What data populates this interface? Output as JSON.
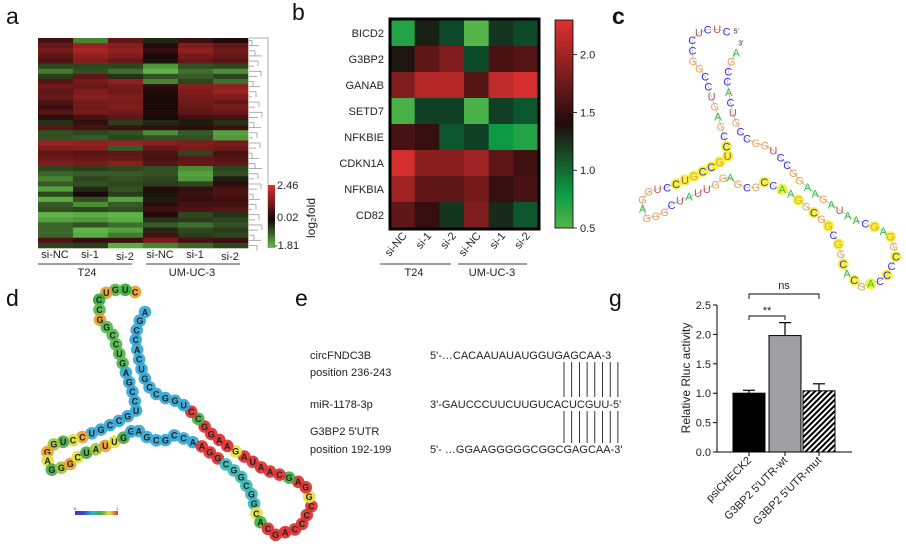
{
  "panel_labels": {
    "a": "a",
    "b": "b",
    "c": "c",
    "d": "d",
    "e": "e",
    "g": "g"
  },
  "chart_data": [
    {
      "id": "a",
      "type": "heatmap",
      "title": "",
      "columns": [
        "si-NC",
        "si-1",
        "si-2",
        "si-NC",
        "si-1",
        "si-2"
      ],
      "groups": [
        {
          "label": "T24",
          "span": 3
        },
        {
          "label": "UM-UC-3",
          "span": 3
        }
      ],
      "colorbar": {
        "label": "log₂fold",
        "max_label": "2.46",
        "mid_label": "0.02",
        "min_label": "-1.81",
        "max": 2.46,
        "mid": 0.02,
        "min": -1.81
      },
      "colors": {
        "high": "#e0302e",
        "mid": "#140808",
        "low": "#62c04a"
      },
      "rows": [
        [
          0.6,
          -1.2,
          0.9,
          -0.3,
          0.5,
          0.2
        ],
        [
          1.0,
          1.6,
          1.4,
          0.2,
          1.3,
          0.9
        ],
        [
          1.2,
          1.8,
          1.5,
          0.4,
          1.5,
          1.1
        ],
        [
          0.9,
          1.5,
          1.3,
          0.1,
          1.2,
          1.0
        ],
        [
          0.7,
          1.3,
          1.0,
          -0.1,
          1.0,
          0.8
        ],
        [
          -0.6,
          -0.6,
          -0.6,
          -1.4,
          -0.7,
          -0.6
        ],
        [
          -1.1,
          -0.7,
          -1.0,
          -1.7,
          -1.0,
          -1.3
        ],
        [
          -0.5,
          0.9,
          -0.4,
          -0.7,
          -0.8,
          -0.6
        ],
        [
          0.8,
          1.2,
          1.5,
          -1.2,
          -0.6,
          -1.0
        ],
        [
          1.1,
          1.0,
          1.2,
          0.3,
          1.4,
          1.5
        ],
        [
          0.9,
          1.3,
          1.1,
          0.2,
          1.3,
          1.6
        ],
        [
          1.0,
          1.4,
          1.3,
          0.1,
          1.2,
          1.3
        ],
        [
          0.7,
          1.2,
          1.2,
          0.0,
          1.1,
          1.0
        ],
        [
          0.5,
          1.1,
          1.3,
          0.1,
          1.0,
          1.2
        ],
        [
          0.8,
          1.2,
          1.1,
          0.2,
          0.9,
          1.0
        ],
        [
          0.3,
          0.6,
          0.9,
          0.0,
          0.5,
          0.6
        ],
        [
          -0.4,
          0.4,
          -0.5,
          -0.3,
          -0.2,
          -0.4
        ],
        [
          0.8,
          0.6,
          0.5,
          0.4,
          0.3,
          0.5
        ],
        [
          -0.7,
          -0.6,
          -0.7,
          -1.3,
          -0.8,
          -1.5
        ],
        [
          -0.7,
          -0.8,
          -0.6,
          -0.7,
          -0.7,
          -1.4
        ],
        [
          1.6,
          1.5,
          1.6,
          1.4,
          1.3,
          1.2
        ],
        [
          1.3,
          1.4,
          -0.8,
          1.0,
          1.2,
          1.1
        ],
        [
          0.9,
          0.8,
          0.9,
          0.7,
          -0.6,
          0.6
        ],
        [
          1.1,
          1.0,
          1.0,
          0.6,
          0.9,
          0.8
        ],
        [
          1.3,
          1.2,
          1.4,
          0.8,
          1.0,
          0.9
        ],
        [
          -0.6,
          -0.5,
          -0.6,
          -0.7,
          -1.3,
          -0.6
        ],
        [
          -0.9,
          -0.8,
          -0.8,
          -0.7,
          -1.5,
          -0.7
        ],
        [
          -1.2,
          -0.6,
          -0.7,
          -0.6,
          -1.4,
          -0.2
        ],
        [
          -0.8,
          -0.7,
          -0.6,
          -0.5,
          -0.6,
          0.3
        ],
        [
          -1.5,
          -0.3,
          -0.7,
          0.2,
          0.4,
          0.6
        ],
        [
          -0.6,
          0.1,
          -0.5,
          -0.1,
          0.5,
          0.7
        ],
        [
          -1.6,
          -0.7,
          -1.5,
          -0.2,
          0.4,
          0.5
        ],
        [
          -0.8,
          -1.3,
          -0.8,
          0.3,
          0.6,
          0.6
        ],
        [
          -0.7,
          -0.6,
          -0.7,
          0.5,
          0.7,
          0.8
        ],
        [
          -1.7,
          -1.6,
          -1.7,
          0.2,
          -0.6,
          -0.4
        ],
        [
          -1.5,
          -1.4,
          -1.6,
          -0.4,
          -0.5,
          -0.6
        ],
        [
          -0.9,
          -0.7,
          -1.0,
          -0.8,
          -1.0,
          -0.7
        ],
        [
          -0.9,
          -1.7,
          -1.5,
          -0.3,
          -0.6,
          -0.5
        ],
        [
          -0.9,
          -1.6,
          -1.1,
          0.6,
          -0.5,
          -0.6
        ],
        [
          0.7,
          0.4,
          0.5,
          1.2,
          0.6,
          0.5
        ],
        [
          -0.6,
          -0.5,
          -1.6,
          -1.2,
          -0.9,
          -0.6
        ]
      ]
    },
    {
      "id": "b",
      "type": "heatmap",
      "columns": [
        "si-NC",
        "si-1",
        "si-2",
        "si-NC",
        "si-1",
        "si-2"
      ],
      "groups": [
        {
          "label": "T24",
          "span": 3
        },
        {
          "label": "UM-UC-3",
          "span": 3
        }
      ],
      "row_labels": [
        "BICD2",
        "G3BP2",
        "GANAB",
        "SETD7",
        "NFKBIE",
        "CDKN1A",
        "NFKBIA",
        "CD82"
      ],
      "values": [
        [
          0.7,
          1.3,
          1.1,
          0.5,
          1.2,
          1.1
        ],
        [
          1.35,
          1.7,
          1.85,
          1.1,
          1.6,
          1.65
        ],
        [
          1.85,
          2.1,
          2.1,
          1.65,
          2.15,
          2.25
        ],
        [
          0.55,
          1.15,
          1.15,
          0.55,
          1.15,
          1.05
        ],
        [
          1.6,
          1.5,
          1.05,
          1.15,
          0.8,
          0.7
        ],
        [
          2.25,
          1.9,
          1.9,
          2.0,
          1.7,
          1.55
        ],
        [
          2.0,
          1.7,
          1.7,
          1.8,
          1.5,
          1.6
        ],
        [
          1.7,
          1.5,
          1.2,
          1.85,
          1.25,
          1.05
        ]
      ],
      "colorbar": {
        "min": 0.5,
        "max": 2.3,
        "ticks": [
          "2.0",
          "1.5",
          "1.0",
          "0.5"
        ],
        "tick_values": [
          2.0,
          1.5,
          1.0,
          0.5
        ]
      }
    },
    {
      "id": "g",
      "type": "bar",
      "categories": [
        "psiCHECK2",
        "G3BP2 5'UTR-wt",
        "G3BP2 5'UTR-mut"
      ],
      "values": [
        1.0,
        1.98,
        1.04
      ],
      "errors": [
        0.05,
        0.22,
        0.12
      ],
      "fills": [
        "#000000",
        "#a0a0a4",
        "hatch"
      ],
      "ylabel": "Relative Rluc activity",
      "ylim": [
        0,
        2.5
      ],
      "yticks": [
        "0.0",
        "0.5",
        "1.0",
        "1.5",
        "2.0",
        "2.5"
      ],
      "ytick_values": [
        0,
        0.5,
        1.0,
        1.5,
        2.0,
        2.5
      ],
      "annotations": [
        {
          "from": 0,
          "to": 1,
          "text": "**"
        },
        {
          "from": 0,
          "to": 2,
          "text": "ns"
        }
      ]
    }
  ],
  "rna_c": {
    "sequence": "CUCUCCGGCCUGAGCCUGCCGUCCUGGAGGGCUAUUGGAGCGCCAAGGCGGCGGCACGACCCCGGAGCAAUAGAAGGCCUGGCCGUCACCGA",
    "five_prime": "5'",
    "three_prime": "3'",
    "colors": {
      "A": "#2fbf3f",
      "C": "#3a2ee0",
      "G": "#f0a050",
      "U": "#c05555",
      "highlight": "#f5f23a"
    }
  },
  "rna_d": {
    "sequence": "CUGUCCGGCCUGAGCCUGCCGUCCUGGAGGGCUAUUGGAGCGCCAAGGCGGCGGCACGACCCCGGAGCAAUAGAAGGCCUGGCCGUCACCGA",
    "scale_min": "0",
    "scale_max": "1"
  },
  "panel_e": {
    "rows": [
      {
        "label1": "circFNDC3B",
        "label2": "position 236-243",
        "seq": "5'-…CACAAUAUAUGGUGAGCAA-3"
      },
      {
        "label1": "miR-1178-3p",
        "label2": "",
        "seq": "3'-GAUCCCUUCUUGUCACUCGUU-5'"
      },
      {
        "label1": "G3BP2  5'UTR",
        "label2": "position 192-199",
        "seq": "5'- …GGAAGGGGGCGGCGAGCAA-3'"
      }
    ]
  }
}
